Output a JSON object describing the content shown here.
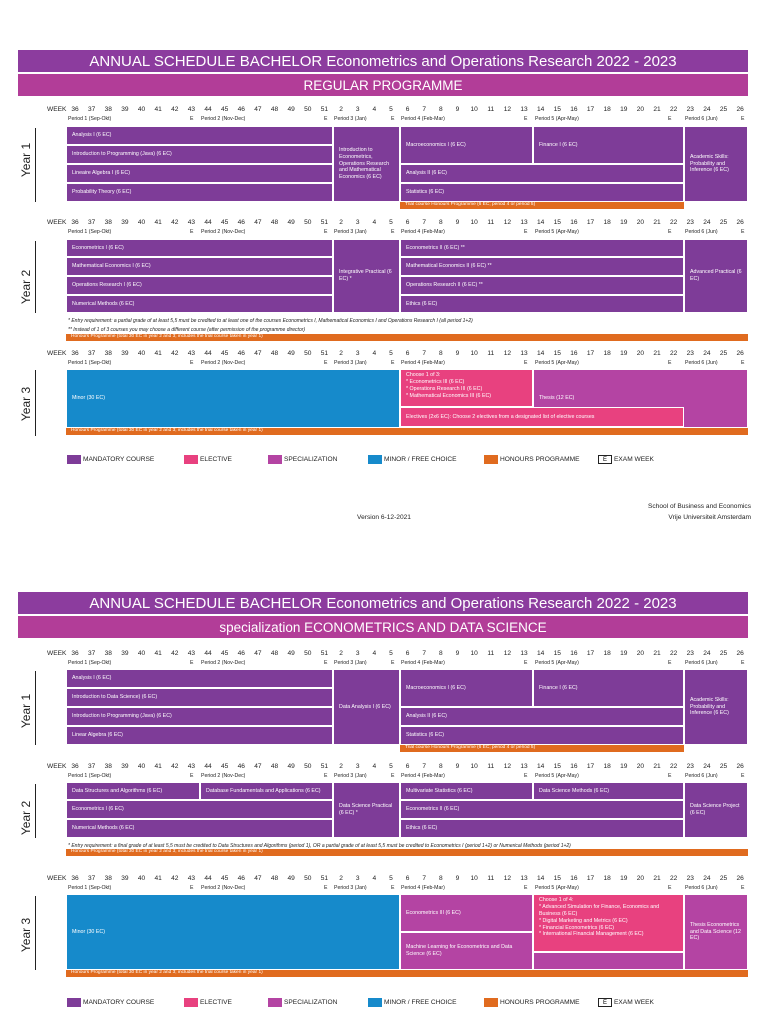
{
  "week_header": {
    "label": "WEEK",
    "weeks": [
      36,
      37,
      38,
      39,
      40,
      41,
      42,
      43,
      44,
      45,
      46,
      47,
      48,
      49,
      50,
      51,
      2,
      3,
      4,
      5,
      6,
      7,
      8,
      9,
      10,
      11,
      12,
      13,
      14,
      15,
      16,
      17,
      18,
      19,
      20,
      21,
      22,
      23,
      24,
      25,
      26
    ],
    "periods": [
      "Period 1 (Sep-Okt)",
      "Period 2 (Nov-Dec)",
      "Period 3 (Jan)",
      "Period 4 (Feb-Mar)",
      "Period 5 (Apr-May)",
      "Period 6 (Jun)"
    ],
    "exam_mark": "E"
  },
  "legend": [
    {
      "label": "MANDATORY COURSE",
      "color": "#7e3c98"
    },
    {
      "label": "ELECTIVE",
      "color": "#e8417f"
    },
    {
      "label": "SPECIALIZATION",
      "color": "#b444a3"
    },
    {
      "label": "MINOR / FREE CHOICE",
      "color": "#168acb"
    },
    {
      "label": "HONOURS PROGRAMME",
      "color": "#e06b1f"
    },
    {
      "label": "EXAM WEEK",
      "mark": "E"
    }
  ],
  "footer": {
    "version": "Version 6-12-2021",
    "school": "School of Business and Economics",
    "university": "Vrije Universiteit Amsterdam"
  },
  "pages": [
    {
      "title": "ANNUAL SCHEDULE BACHELOR Econometrics and Operations Research 2022 - 2023",
      "subtitle": "REGULAR PROGRAMME",
      "years": [
        {
          "label": "Year 1",
          "courses": [
            {
              "text": "Analysis I (6 EC)",
              "color": "#7e3c98"
            },
            {
              "text": "Introduction to Programming (Java) (6 EC)",
              "color": "#7e3c98"
            },
            {
              "text": "Lineaire Algebra I (6 EC)",
              "color": "#7e3c98"
            },
            {
              "text": "Probability Theory (6 EC)",
              "color": "#7e3c98"
            },
            {
              "text": "Introduction to Econometrics, Operations Research and Mathematical Economics (6 EC)",
              "color": "#7e3c98"
            },
            {
              "text": "Macroeconomics I (6 EC)",
              "color": "#7e3c98"
            },
            {
              "text": "Finance I (6 EC)",
              "color": "#7e3c98"
            },
            {
              "text": "Analysis II (6 EC)",
              "color": "#7e3c98"
            },
            {
              "text": "Statistics (6 EC)",
              "color": "#7e3c98"
            },
            {
              "text": "Academic Skills: Probability and Inference (6 EC)",
              "color": "#7e3c98"
            },
            {
              "text": "Trial course Honours Programme (6 EC; period 4 or period 5)",
              "color": "#e06b1f"
            }
          ],
          "notes": []
        },
        {
          "label": "Year 2",
          "courses": [
            {
              "text": "Econometrics I (6 EC)",
              "color": "#7e3c98"
            },
            {
              "text": "Mathematical Economics I (6 EC)",
              "color": "#7e3c98"
            },
            {
              "text": "Operations Research I (6 EC)",
              "color": "#7e3c98"
            },
            {
              "text": "Numerical Methods (6 EC)",
              "color": "#7e3c98"
            },
            {
              "text": "Integrative Practical (6 EC) *",
              "color": "#7e3c98"
            },
            {
              "text": "Econometrics II (6 EC) **",
              "color": "#7e3c98"
            },
            {
              "text": "Mathematical Economics II (6 EC) **",
              "color": "#7e3c98"
            },
            {
              "text": "Operations Research II (6 EC) **",
              "color": "#7e3c98"
            },
            {
              "text": "Ethics (6 EC)",
              "color": "#7e3c98"
            },
            {
              "text": "Advanced Practical (6 EC)",
              "color": "#7e3c98"
            },
            {
              "text": "Honours Programme (total 30 EC in year 2 and 3; includes the trial course taken in year 1)",
              "color": "#e06b1f"
            }
          ],
          "notes": [
            "* Entry requirement: a partial grade of at least 5,5 must be credited to at least one of the courses Econometrics I, Mathematical Economics I and Operations Research I (all period 1+2)",
            "** Instead of 1 of 3 courses you may choose a different course (after permission of the programme director)"
          ]
        },
        {
          "label": "Year 3",
          "courses": [
            {
              "text": "Minor (30 EC)",
              "color": "#168acb"
            },
            {
              "lines": [
                "Choose 1 of 3:",
                "* Econometrics III (6 EC)",
                "* Operations Research III (6 EC)",
                "* Mathematical Economics III (6 EC)"
              ],
              "color": "#e8417f"
            },
            {
              "text": "Thesis (12 EC)",
              "color": "#b444a3"
            },
            {
              "text": "Electives (2x6 EC): Choose 2 electives from a designated list of elective courses",
              "color": "#e8417f"
            },
            {
              "text": "Honours Programme (total 30 EC in year 2 and 3; includes the trial course taken in year 1)",
              "color": "#e06b1f"
            }
          ],
          "notes": []
        }
      ]
    },
    {
      "title": "ANNUAL SCHEDULE BACHELOR Econometrics and Operations Research 2022 - 2023",
      "subtitle": "specialization ECONOMETRICS AND DATA SCIENCE",
      "years": [
        {
          "label": "Year 1",
          "courses": [
            {
              "text": "Analysis I (6 EC)",
              "color": "#7e3c98"
            },
            {
              "text": "Introduction to Data Science) (6 EC)",
              "color": "#7e3c98"
            },
            {
              "text": "Introduction to Programming (Java) (6 EC)",
              "color": "#7e3c98"
            },
            {
              "text": "Linear Algebra (6 EC)",
              "color": "#7e3c98"
            },
            {
              "text": "Data Analysis I (6 EC)",
              "color": "#7e3c98"
            },
            {
              "text": "Macroeconomics I (6 EC)",
              "color": "#7e3c98"
            },
            {
              "text": "Finance I (6 EC)",
              "color": "#7e3c98"
            },
            {
              "text": "Analysis II (6 EC)",
              "color": "#7e3c98"
            },
            {
              "text": "Statistics (6 EC)",
              "color": "#7e3c98"
            },
            {
              "text": "Academic Skills: Probability and Inference (6 EC)",
              "color": "#7e3c98"
            },
            {
              "text": "Trial course Honours Programme (6 EC; period 4 or period 5)",
              "color": "#e06b1f"
            }
          ],
          "notes": []
        },
        {
          "label": "Year 2",
          "courses": [
            {
              "text": "Data Structures and Algorithms (6 EC)",
              "color": "#7e3c98"
            },
            {
              "text": "Database Fundamentals and Applications (6 EC)",
              "color": "#7e3c98"
            },
            {
              "text": "Econometrics I (6 EC)",
              "color": "#7e3c98"
            },
            {
              "text": "Numerical Methods (6 EC)",
              "color": "#7e3c98"
            },
            {
              "text": "Data Science Practical (6 EC) *",
              "color": "#7e3c98"
            },
            {
              "text": "Multivariate Statistics (6 EC)",
              "color": "#7e3c98"
            },
            {
              "text": "Data Science Methods (6 EC)",
              "color": "#7e3c98"
            },
            {
              "text": "Econometrics II (6 EC)",
              "color": "#7e3c98"
            },
            {
              "text": "Ethics (6 EC)",
              "color": "#7e3c98"
            },
            {
              "text": "Data Science Project (6 EC)",
              "color": "#7e3c98"
            },
            {
              "text": "Honours Programme (total 30 EC in year 2 and 3; includes the trial course taken in year 1)",
              "color": "#e06b1f"
            }
          ],
          "notes": [
            "* Entry requirement: a final grade of at least 5,5 must be credited to Data Structures and Algorithms (period 1), OR a partial grade of at least 5,5 must be credited to Econometrics I (period 1+2) or Numerical Methods (period 1+2)"
          ]
        },
        {
          "label": "Year 3",
          "courses": [
            {
              "text": "Minor (30 EC)",
              "color": "#168acb"
            },
            {
              "text": "Econometrics III (6 EC)",
              "color": "#b444a3"
            },
            {
              "text": "Machine Learning for Econometrics and Data Science (6 EC)",
              "color": "#b444a3"
            },
            {
              "lines": [
                "Choose 1 of 4:",
                "* Advanced Simulation for Finance, Economics and Business (6 EC)",
                "* Digital Marketing and Metrics (6 EC)",
                "* Financial Econometrics (6 EC)",
                "* International Financial Management (6 EC)"
              ],
              "color": "#e8417f"
            },
            {
              "text": "Thesis Econometrics and Data Science (12 EC)",
              "color": "#b444a3"
            },
            {
              "text": "Honours Programme (total 30 EC in year 2 and 3; includes the trial course taken in year 1)",
              "color": "#e06b1f"
            }
          ],
          "notes": []
        }
      ]
    }
  ]
}
